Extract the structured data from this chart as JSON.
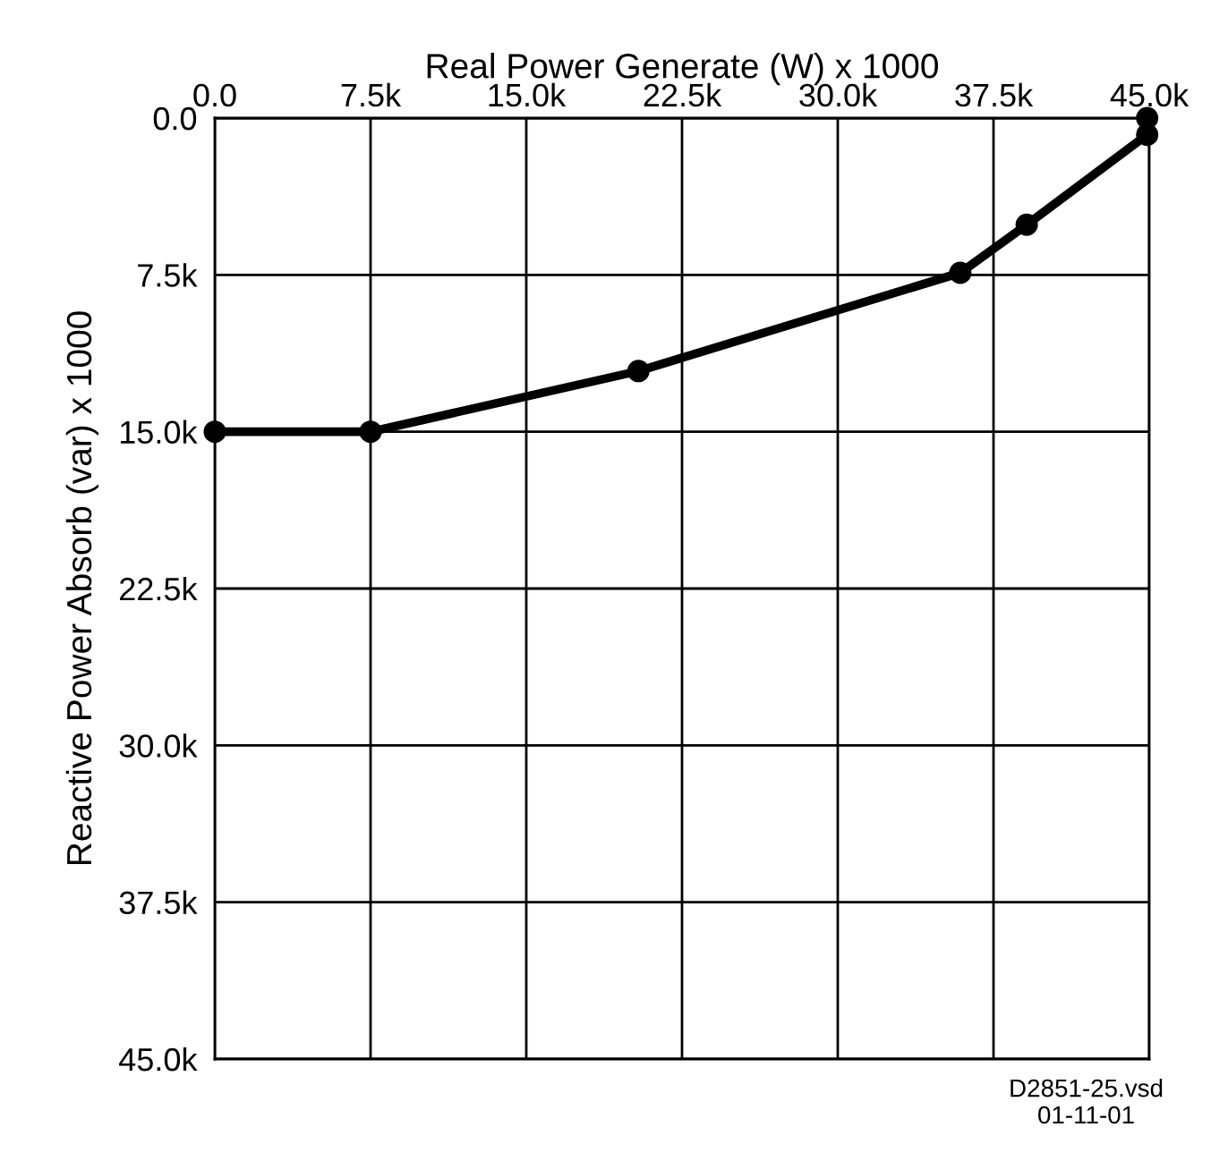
{
  "chart_data": {
    "type": "line",
    "xlabel": "Real Power Generate (W) x 1000",
    "ylabel": "Reactive Power Absorb (var) x 1000",
    "series": [
      {
        "color": "#000000",
        "x": [
          0,
          7.5,
          20.4,
          35.9,
          39.1,
          44.9,
          44.9
        ],
        "values": [
          15.0,
          15.0,
          12.1,
          7.4,
          5.1,
          0.8,
          0.0
        ]
      }
    ],
    "xlim": [
      0,
      45
    ],
    "ylim": [
      45,
      0
    ],
    "xticks": [
      {
        "value": 0,
        "label": "0.0"
      },
      {
        "value": 7.5,
        "label": "7.5k"
      },
      {
        "value": 15,
        "label": "15.0k"
      },
      {
        "value": 22.5,
        "label": "22.5k"
      },
      {
        "value": 30,
        "label": "30.0k"
      },
      {
        "value": 37.5,
        "label": "37.5k"
      },
      {
        "value": 45,
        "label": "45.0k"
      }
    ],
    "yticks": [
      {
        "value": 0,
        "label": "0.0"
      },
      {
        "value": 7.5,
        "label": "7.5k"
      },
      {
        "value": 15,
        "label": "15.0k"
      },
      {
        "value": 22.5,
        "label": "22.5k"
      },
      {
        "value": 30,
        "label": "30.0k"
      },
      {
        "value": 37.5,
        "label": "37.5k"
      },
      {
        "value": 45,
        "label": "45.0k"
      }
    ],
    "grid": true,
    "marker": "circle",
    "line_style": "solid",
    "annotations": [
      "D2851-25.vsd\n01-11-01"
    ]
  }
}
